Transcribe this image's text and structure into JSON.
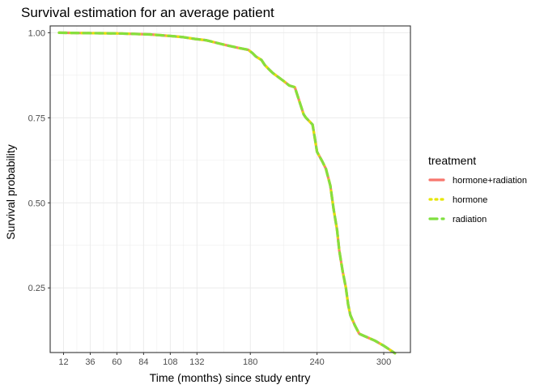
{
  "chart_data": {
    "type": "line",
    "title": "Survival estimation for an average patient",
    "xlabel": "Time (months) since study entry",
    "ylabel": "Survival probability",
    "xlim": [
      0,
      324
    ],
    "ylim": [
      0.06,
      1.02
    ],
    "x_ticks": [
      12,
      36,
      60,
      84,
      108,
      132,
      180,
      240,
      300
    ],
    "y_ticks": [
      0.25,
      0.5,
      0.75,
      1.0
    ],
    "y_tick_labels": [
      "0.25",
      "0.50",
      "0.75",
      "1.00"
    ],
    "grid": true,
    "legend": {
      "title": "treatment",
      "position": "right"
    },
    "series": [
      {
        "name": "hormone+radiation",
        "color": "#F8766D",
        "linestyle": "solid",
        "x": [
          8,
          30,
          60,
          90,
          110,
          120,
          130,
          140,
          150,
          160,
          170,
          178,
          182,
          185,
          190,
          193,
          196,
          200,
          205,
          210,
          215,
          220,
          222,
          225,
          228,
          230,
          233,
          236,
          238,
          240,
          245,
          248,
          252,
          255,
          258,
          260,
          263,
          266,
          268,
          270,
          274,
          278,
          285,
          292,
          300,
          310
        ],
        "values": [
          1.0,
          0.999,
          0.998,
          0.995,
          0.99,
          0.987,
          0.982,
          0.978,
          0.97,
          0.962,
          0.955,
          0.95,
          0.94,
          0.93,
          0.92,
          0.905,
          0.895,
          0.882,
          0.87,
          0.858,
          0.845,
          0.84,
          0.82,
          0.79,
          0.76,
          0.75,
          0.74,
          0.73,
          0.69,
          0.65,
          0.62,
          0.6,
          0.55,
          0.48,
          0.42,
          0.36,
          0.3,
          0.25,
          0.2,
          0.17,
          0.14,
          0.115,
          0.105,
          0.095,
          0.08,
          0.058
        ]
      },
      {
        "name": "hormone",
        "color": "#E6E600",
        "linestyle": "dotted",
        "x": [
          8,
          30,
          60,
          90,
          110,
          120,
          130,
          140,
          150,
          160,
          170,
          178,
          182,
          185,
          190,
          193,
          196,
          200,
          205,
          210,
          215,
          220,
          222,
          225,
          228,
          230,
          233,
          236,
          238,
          240,
          245,
          248,
          252,
          255,
          258,
          260,
          263,
          266,
          268,
          270,
          274,
          278,
          285,
          292,
          300,
          310
        ],
        "values": [
          1.0,
          0.999,
          0.998,
          0.995,
          0.99,
          0.987,
          0.982,
          0.978,
          0.97,
          0.962,
          0.955,
          0.95,
          0.94,
          0.93,
          0.92,
          0.905,
          0.895,
          0.882,
          0.87,
          0.858,
          0.845,
          0.84,
          0.82,
          0.79,
          0.76,
          0.75,
          0.74,
          0.73,
          0.69,
          0.65,
          0.62,
          0.6,
          0.55,
          0.48,
          0.42,
          0.36,
          0.3,
          0.25,
          0.2,
          0.17,
          0.14,
          0.115,
          0.105,
          0.095,
          0.08,
          0.058
        ]
      },
      {
        "name": "radiation",
        "color": "#7FE03F",
        "linestyle": "dashed",
        "x": [
          8,
          30,
          60,
          90,
          110,
          120,
          130,
          140,
          150,
          160,
          170,
          178,
          182,
          185,
          190,
          193,
          196,
          200,
          205,
          210,
          215,
          220,
          222,
          225,
          228,
          230,
          233,
          236,
          238,
          240,
          245,
          248,
          252,
          255,
          258,
          260,
          263,
          266,
          268,
          270,
          274,
          278,
          285,
          292,
          300,
          310
        ],
        "values": [
          1.0,
          0.999,
          0.998,
          0.995,
          0.99,
          0.987,
          0.982,
          0.978,
          0.97,
          0.962,
          0.955,
          0.95,
          0.94,
          0.93,
          0.92,
          0.905,
          0.895,
          0.882,
          0.87,
          0.858,
          0.845,
          0.84,
          0.82,
          0.79,
          0.76,
          0.75,
          0.74,
          0.73,
          0.69,
          0.65,
          0.62,
          0.6,
          0.55,
          0.48,
          0.42,
          0.36,
          0.3,
          0.25,
          0.2,
          0.17,
          0.14,
          0.115,
          0.105,
          0.095,
          0.08,
          0.058
        ]
      }
    ]
  }
}
